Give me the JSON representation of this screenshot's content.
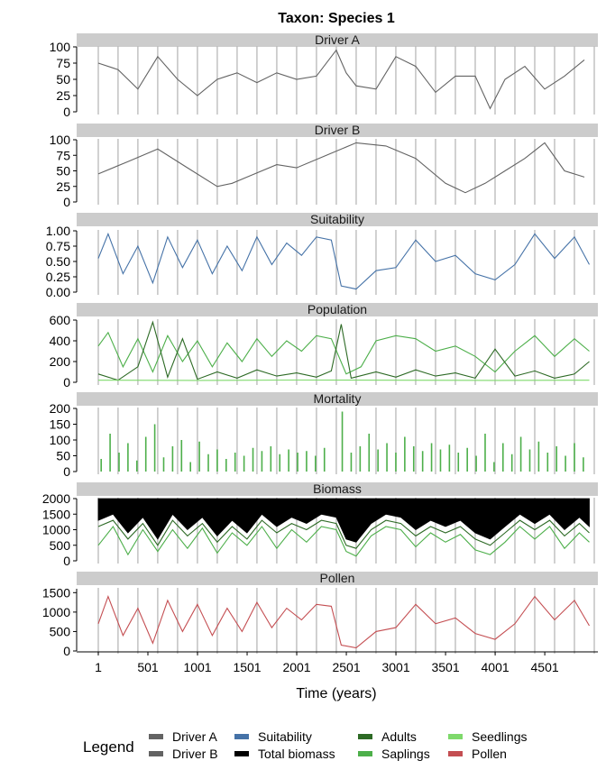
{
  "chart_data": {
    "type": "line",
    "title": "Taxon: Species 1",
    "xlabel": "Time (years)",
    "xlim": [
      1,
      5000
    ],
    "x_ticks": [
      "1",
      "501",
      "1001",
      "1501",
      "2001",
      "2501",
      "3001",
      "3501",
      "4001",
      "4501"
    ],
    "x_tick_values": [
      1,
      501,
      1001,
      1501,
      2001,
      2501,
      3001,
      3501,
      4001,
      4501
    ],
    "sampling_lines": [
      1,
      200,
      400,
      600,
      800,
      1000,
      1200,
      1400,
      1600,
      1800,
      2000,
      2200,
      2400,
      2600,
      2800,
      3000,
      3200,
      3400,
      3600,
      3800,
      4000,
      4200,
      4400,
      4600,
      4800,
      5000
    ],
    "legend": {
      "title": "Legend",
      "position": "bottom",
      "items": [
        {
          "label": "Driver A",
          "color": "#636363"
        },
        {
          "label": "Driver B",
          "color": "#636363"
        },
        {
          "label": "Suitability",
          "color": "#4572a7"
        },
        {
          "label": "Total biomass",
          "color": "#000000"
        },
        {
          "label": "Adults",
          "color": "#2d6a25"
        },
        {
          "label": "Saplings",
          "color": "#4daf4a"
        },
        {
          "label": "Seedlings",
          "color": "#7ed96b"
        },
        {
          "label": "Pollen",
          "color": "#c44e52"
        }
      ]
    },
    "panels": [
      {
        "strip": "Driver A",
        "ylim": [
          0,
          100
        ],
        "y_ticks": [
          "0",
          "25",
          "50",
          "75",
          "100"
        ],
        "y_tick_values": [
          0,
          25,
          50,
          75,
          100
        ],
        "series": [
          {
            "name": "Driver A",
            "color": "#636363",
            "style": "line",
            "x": [
              1,
              200,
              400,
              600,
              800,
              1000,
              1200,
              1400,
              1600,
              1800,
              2000,
              2200,
              2400,
              2500,
              2600,
              2800,
              3000,
              3200,
              3400,
              3600,
              3800,
              3950,
              4100,
              4300,
              4500,
              4700,
              4900
            ],
            "y": [
              75,
              65,
              35,
              85,
              50,
              25,
              50,
              60,
              45,
              60,
              50,
              55,
              95,
              60,
              40,
              35,
              85,
              70,
              30,
              55,
              55,
              5,
              50,
              70,
              35,
              55,
              80
            ]
          }
        ]
      },
      {
        "strip": "Driver B",
        "ylim": [
          0,
          100
        ],
        "y_ticks": [
          "0",
          "25",
          "50",
          "75",
          "100"
        ],
        "y_tick_values": [
          0,
          25,
          50,
          75,
          100
        ],
        "series": [
          {
            "name": "Driver B",
            "color": "#636363",
            "style": "line",
            "x": [
              1,
              300,
              600,
              900,
              1200,
              1350,
              1500,
              1800,
              2000,
              2300,
              2600,
              2900,
              3200,
              3500,
              3700,
              3900,
              4100,
              4300,
              4500,
              4700,
              4900
            ],
            "y": [
              45,
              65,
              85,
              55,
              25,
              30,
              40,
              60,
              55,
              75,
              95,
              90,
              70,
              30,
              15,
              30,
              50,
              70,
              95,
              50,
              40
            ]
          }
        ]
      },
      {
        "strip": "Suitability",
        "ylim": [
          0,
          1
        ],
        "y_ticks": [
          "0.00",
          "0.25",
          "0.50",
          "0.75",
          "1.00"
        ],
        "y_tick_values": [
          0,
          0.25,
          0.5,
          0.75,
          1
        ],
        "series": [
          {
            "name": "Suitability",
            "color": "#4572a7",
            "style": "line",
            "x": [
              1,
              100,
              250,
              400,
              550,
              700,
              850,
              1000,
              1150,
              1300,
              1450,
              1600,
              1750,
              1900,
              2050,
              2200,
              2350,
              2450,
              2600,
              2800,
              3000,
              3200,
              3400,
              3600,
              3800,
              4000,
              4200,
              4400,
              4600,
              4800,
              4950
            ],
            "y": [
              0.55,
              0.95,
              0.3,
              0.75,
              0.15,
              0.9,
              0.4,
              0.85,
              0.3,
              0.75,
              0.35,
              0.9,
              0.45,
              0.8,
              0.6,
              0.9,
              0.85,
              0.1,
              0.05,
              0.35,
              0.4,
              0.85,
              0.5,
              0.6,
              0.3,
              0.2,
              0.45,
              0.95,
              0.55,
              0.9,
              0.45
            ]
          }
        ]
      },
      {
        "strip": "Population",
        "ylim": [
          0,
          600
        ],
        "y_ticks": [
          "0",
          "200",
          "400",
          "600"
        ],
        "y_tick_values": [
          0,
          200,
          400,
          600
        ],
        "series": [
          {
            "name": "Saplings",
            "color": "#4daf4a",
            "style": "line",
            "x": [
              1,
              100,
              250,
              400,
              550,
              700,
              850,
              1000,
              1150,
              1300,
              1450,
              1600,
              1750,
              1900,
              2050,
              2200,
              2350,
              2500,
              2650,
              2800,
              3000,
              3200,
              3400,
              3600,
              3800,
              4000,
              4200,
              4400,
              4600,
              4800,
              4950
            ],
            "y": [
              350,
              480,
              150,
              420,
              100,
              450,
              200,
              400,
              150,
              380,
              200,
              420,
              250,
              400,
              300,
              450,
              420,
              80,
              150,
              400,
              450,
              420,
              300,
              350,
              250,
              100,
              300,
              450,
              250,
              420,
              300
            ]
          },
          {
            "name": "Adults",
            "color": "#2d6a25",
            "style": "line",
            "x": [
              1,
              200,
              400,
              550,
              700,
              850,
              1000,
              1200,
              1400,
              1600,
              1800,
              2000,
              2200,
              2350,
              2450,
              2550,
              2800,
              3000,
              3200,
              3400,
              3600,
              3800,
              4000,
              4200,
              4400,
              4600,
              4800,
              4950
            ],
            "y": [
              80,
              20,
              150,
              580,
              50,
              420,
              30,
              100,
              40,
              120,
              60,
              90,
              50,
              110,
              560,
              40,
              100,
              50,
              120,
              60,
              90,
              40,
              320,
              60,
              110,
              40,
              80,
              200
            ]
          },
          {
            "name": "Seedlings",
            "color": "#7ed96b",
            "style": "line",
            "x": [
              1,
              1000,
              2000,
              3000,
              4000,
              4950
            ],
            "y": [
              20,
              18,
              22,
              20,
              18,
              20
            ]
          }
        ]
      },
      {
        "strip": "Mortality",
        "ylim": [
          0,
          200
        ],
        "y_ticks": [
          "0",
          "50",
          "100",
          "150",
          "200"
        ],
        "y_tick_values": [
          0,
          50,
          100,
          150,
          200
        ],
        "series": [
          {
            "name": "Saplings",
            "color": "#4daf4a",
            "style": "spikes",
            "x": [
              30,
              120,
              210,
              300,
              390,
              480,
              570,
              660,
              750,
              840,
              930,
              1020,
              1110,
              1200,
              1290,
              1380,
              1470,
              1560,
              1650,
              1740,
              1830,
              1920,
              2010,
              2100,
              2190,
              2280,
              2370,
              2460,
              2550,
              2640,
              2730,
              2820,
              2910,
              3000,
              3090,
              3180,
              3270,
              3360,
              3450,
              3540,
              3630,
              3720,
              3810,
              3900,
              3990,
              4080,
              4170,
              4260,
              4350,
              4440,
              4530,
              4620,
              4710,
              4800,
              4890
            ],
            "y": [
              40,
              120,
              60,
              90,
              35,
              110,
              150,
              45,
              80,
              100,
              30,
              95,
              55,
              70,
              40,
              60,
              50,
              75,
              65,
              80,
              55,
              70,
              60,
              65,
              50,
              75,
              0,
              190,
              60,
              80,
              120,
              70,
              90,
              60,
              110,
              80,
              65,
              90,
              70,
              85,
              60,
              75,
              50,
              120,
              30,
              90,
              55,
              110,
              70,
              95,
              60,
              80,
              50,
              90,
              45
            ]
          }
        ]
      },
      {
        "strip": "Biomass",
        "ylim": [
          0,
          2000
        ],
        "y_ticks": [
          "0",
          "500",
          "1000",
          "1500",
          "2000"
        ],
        "y_tick_values": [
          0,
          500,
          1000,
          1500,
          2000
        ],
        "series": [
          {
            "name": "Total biomass",
            "color": "#000000",
            "style": "area",
            "baseline": 2000,
            "x": [
              1,
              150,
              300,
              450,
              600,
              750,
              900,
              1050,
              1200,
              1350,
              1500,
              1650,
              1800,
              1950,
              2100,
              2250,
              2400,
              2500,
              2600,
              2750,
              2900,
              3050,
              3200,
              3350,
              3500,
              3650,
              3800,
              3950,
              4100,
              4250,
              4400,
              4550,
              4700,
              4850,
              4950
            ],
            "y": [
              1300,
              1500,
              900,
              1400,
              700,
              1500,
              1000,
              1400,
              800,
              1300,
              900,
              1500,
              1100,
              1400,
              1200,
              1500,
              1400,
              700,
              600,
              1200,
              1500,
              1400,
              1000,
              1300,
              1100,
              1300,
              900,
              700,
              1100,
              1500,
              1200,
              1500,
              1000,
              1400,
              1100
            ]
          },
          {
            "name": "Adults",
            "color": "#2d6a25",
            "style": "line",
            "x": [
              1,
              150,
              300,
              450,
              600,
              750,
              900,
              1050,
              1200,
              1350,
              1500,
              1650,
              1800,
              1950,
              2100,
              2250,
              2400,
              2500,
              2600,
              2750,
              2900,
              3050,
              3200,
              3350,
              3500,
              3650,
              3800,
              3950,
              4100,
              4250,
              4400,
              4550,
              4700,
              4850,
              4950
            ],
            "y": [
              1100,
              1300,
              700,
              1200,
              500,
              1300,
              800,
              1200,
              600,
              1100,
              700,
              1300,
              900,
              1200,
              1000,
              1300,
              1200,
              500,
              400,
              1000,
              1300,
              1200,
              800,
              1100,
              900,
              1100,
              700,
              500,
              900,
              1300,
              1000,
              1300,
              800,
              1200,
              900
            ]
          },
          {
            "name": "Saplings",
            "color": "#4daf4a",
            "style": "line",
            "x": [
              1,
              150,
              300,
              450,
              600,
              750,
              900,
              1050,
              1200,
              1350,
              1500,
              1650,
              1800,
              1950,
              2100,
              2250,
              2400,
              2500,
              2600,
              2750,
              2900,
              3050,
              3200,
              3350,
              3500,
              3650,
              3800,
              3950,
              4100,
              4250,
              4400,
              4550,
              4700,
              4850,
              4950
            ],
            "y": [
              500,
              1100,
              200,
              1000,
              300,
              1000,
              400,
              1050,
              250,
              900,
              500,
              1100,
              400,
              1000,
              600,
              1100,
              1000,
              300,
              150,
              800,
              1100,
              1000,
              450,
              900,
              600,
              850,
              350,
              200,
              600,
              1100,
              700,
              1100,
              400,
              900,
              600
            ]
          }
        ]
      },
      {
        "strip": "Pollen",
        "ylim": [
          0,
          1600
        ],
        "y_ticks": [
          "0",
          "500",
          "1000",
          "1500"
        ],
        "y_tick_values": [
          0,
          500,
          1000,
          1500
        ],
        "series": [
          {
            "name": "Pollen",
            "color": "#c44e52",
            "style": "line",
            "x": [
              1,
              100,
              250,
              400,
              550,
              700,
              850,
              1000,
              1150,
              1300,
              1450,
              1600,
              1750,
              1900,
              2050,
              2200,
              2350,
              2450,
              2600,
              2800,
              3000,
              3200,
              3400,
              3600,
              3800,
              4000,
              4200,
              4400,
              4600,
              4800,
              4950
            ],
            "y": [
              700,
              1400,
              400,
              1100,
              200,
              1300,
              500,
              1200,
              400,
              1100,
              500,
              1250,
              600,
              1100,
              800,
              1200,
              1150,
              150,
              80,
              500,
              600,
              1200,
              700,
              850,
              450,
              300,
              700,
              1400,
              800,
              1300,
              650
            ]
          }
        ]
      }
    ]
  }
}
